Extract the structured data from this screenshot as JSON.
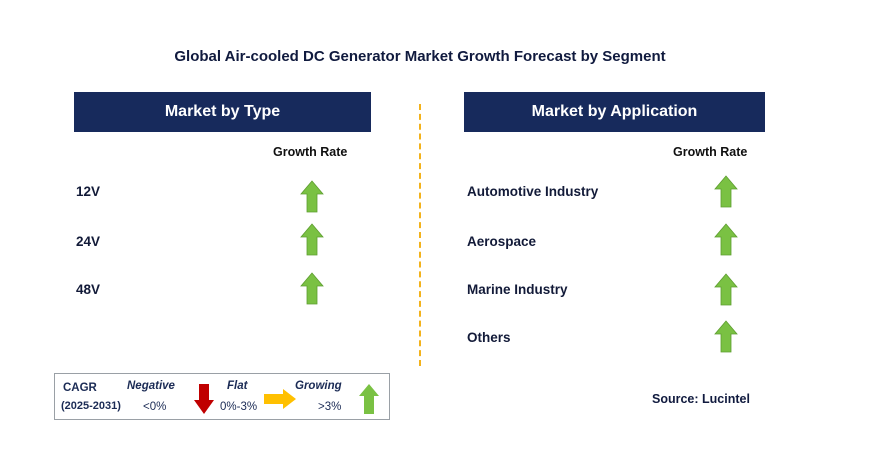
{
  "title": "Global Air-cooled DC Generator Market Growth Forecast by Segment",
  "colors": {
    "header_bg": "#172a5c",
    "up_arrow": "#7ac143",
    "down_arrow": "#c00000",
    "flat_arrow": "#ffc000",
    "divider": "#f3b21b"
  },
  "type_panel": {
    "header": "Market by Type",
    "column_label": "Growth Rate",
    "rows": [
      {
        "label": "12V",
        "trend": "growing"
      },
      {
        "label": "24V",
        "trend": "growing"
      },
      {
        "label": "48V",
        "trend": "growing"
      }
    ]
  },
  "application_panel": {
    "header": "Market by Application",
    "column_label": "Growth Rate",
    "rows": [
      {
        "label": "Automotive Industry",
        "trend": "growing"
      },
      {
        "label": "Aerospace",
        "trend": "growing"
      },
      {
        "label": "Marine Industry",
        "trend": "growing"
      },
      {
        "label": "Others",
        "trend": "growing"
      }
    ]
  },
  "legend": {
    "cagr_label": "CAGR",
    "period": "(2025-2031)",
    "negative": {
      "label": "Negative",
      "range": "<0%",
      "icon": "down-arrow-icon"
    },
    "flat": {
      "label": "Flat",
      "range": "0%-3%",
      "icon": "right-arrow-icon"
    },
    "growing": {
      "label": "Growing",
      "range": ">3%",
      "icon": "up-arrow-icon"
    }
  },
  "source": "Source: Lucintel"
}
